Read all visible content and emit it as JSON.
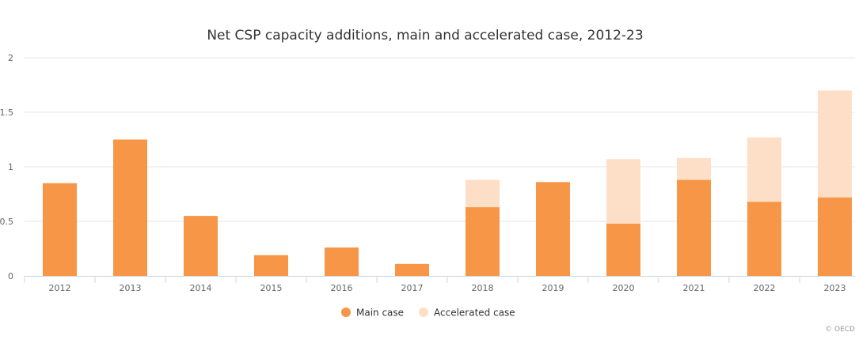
{
  "chart_data": {
    "type": "bar",
    "stacked": true,
    "title": "Net CSP capacity additions, main and accelerated case, 2012-23",
    "xlabel": "",
    "ylabel": "",
    "ylim": [
      0,
      2
    ],
    "yticks": [
      "0",
      "0.5",
      "1",
      "1.5",
      "2"
    ],
    "grid": true,
    "legend_position": "bottom",
    "categories": [
      "2012",
      "2013",
      "2014",
      "2015",
      "2016",
      "2017",
      "2018",
      "2019",
      "2020",
      "2021",
      "2022",
      "2023"
    ],
    "series": [
      {
        "name": "Main case",
        "color": "#f79646",
        "values": [
          0.85,
          1.25,
          0.55,
          0.19,
          0.26,
          0.11,
          0.63,
          0.86,
          0.48,
          0.88,
          0.68,
          0.72
        ]
      },
      {
        "name": "Accelerated case",
        "color": "#fddfc8",
        "values": [
          0,
          0,
          0,
          0,
          0,
          0,
          0.25,
          0,
          0.59,
          0.2,
          0.59,
          0.98
        ]
      }
    ]
  },
  "credit": "© OECD"
}
